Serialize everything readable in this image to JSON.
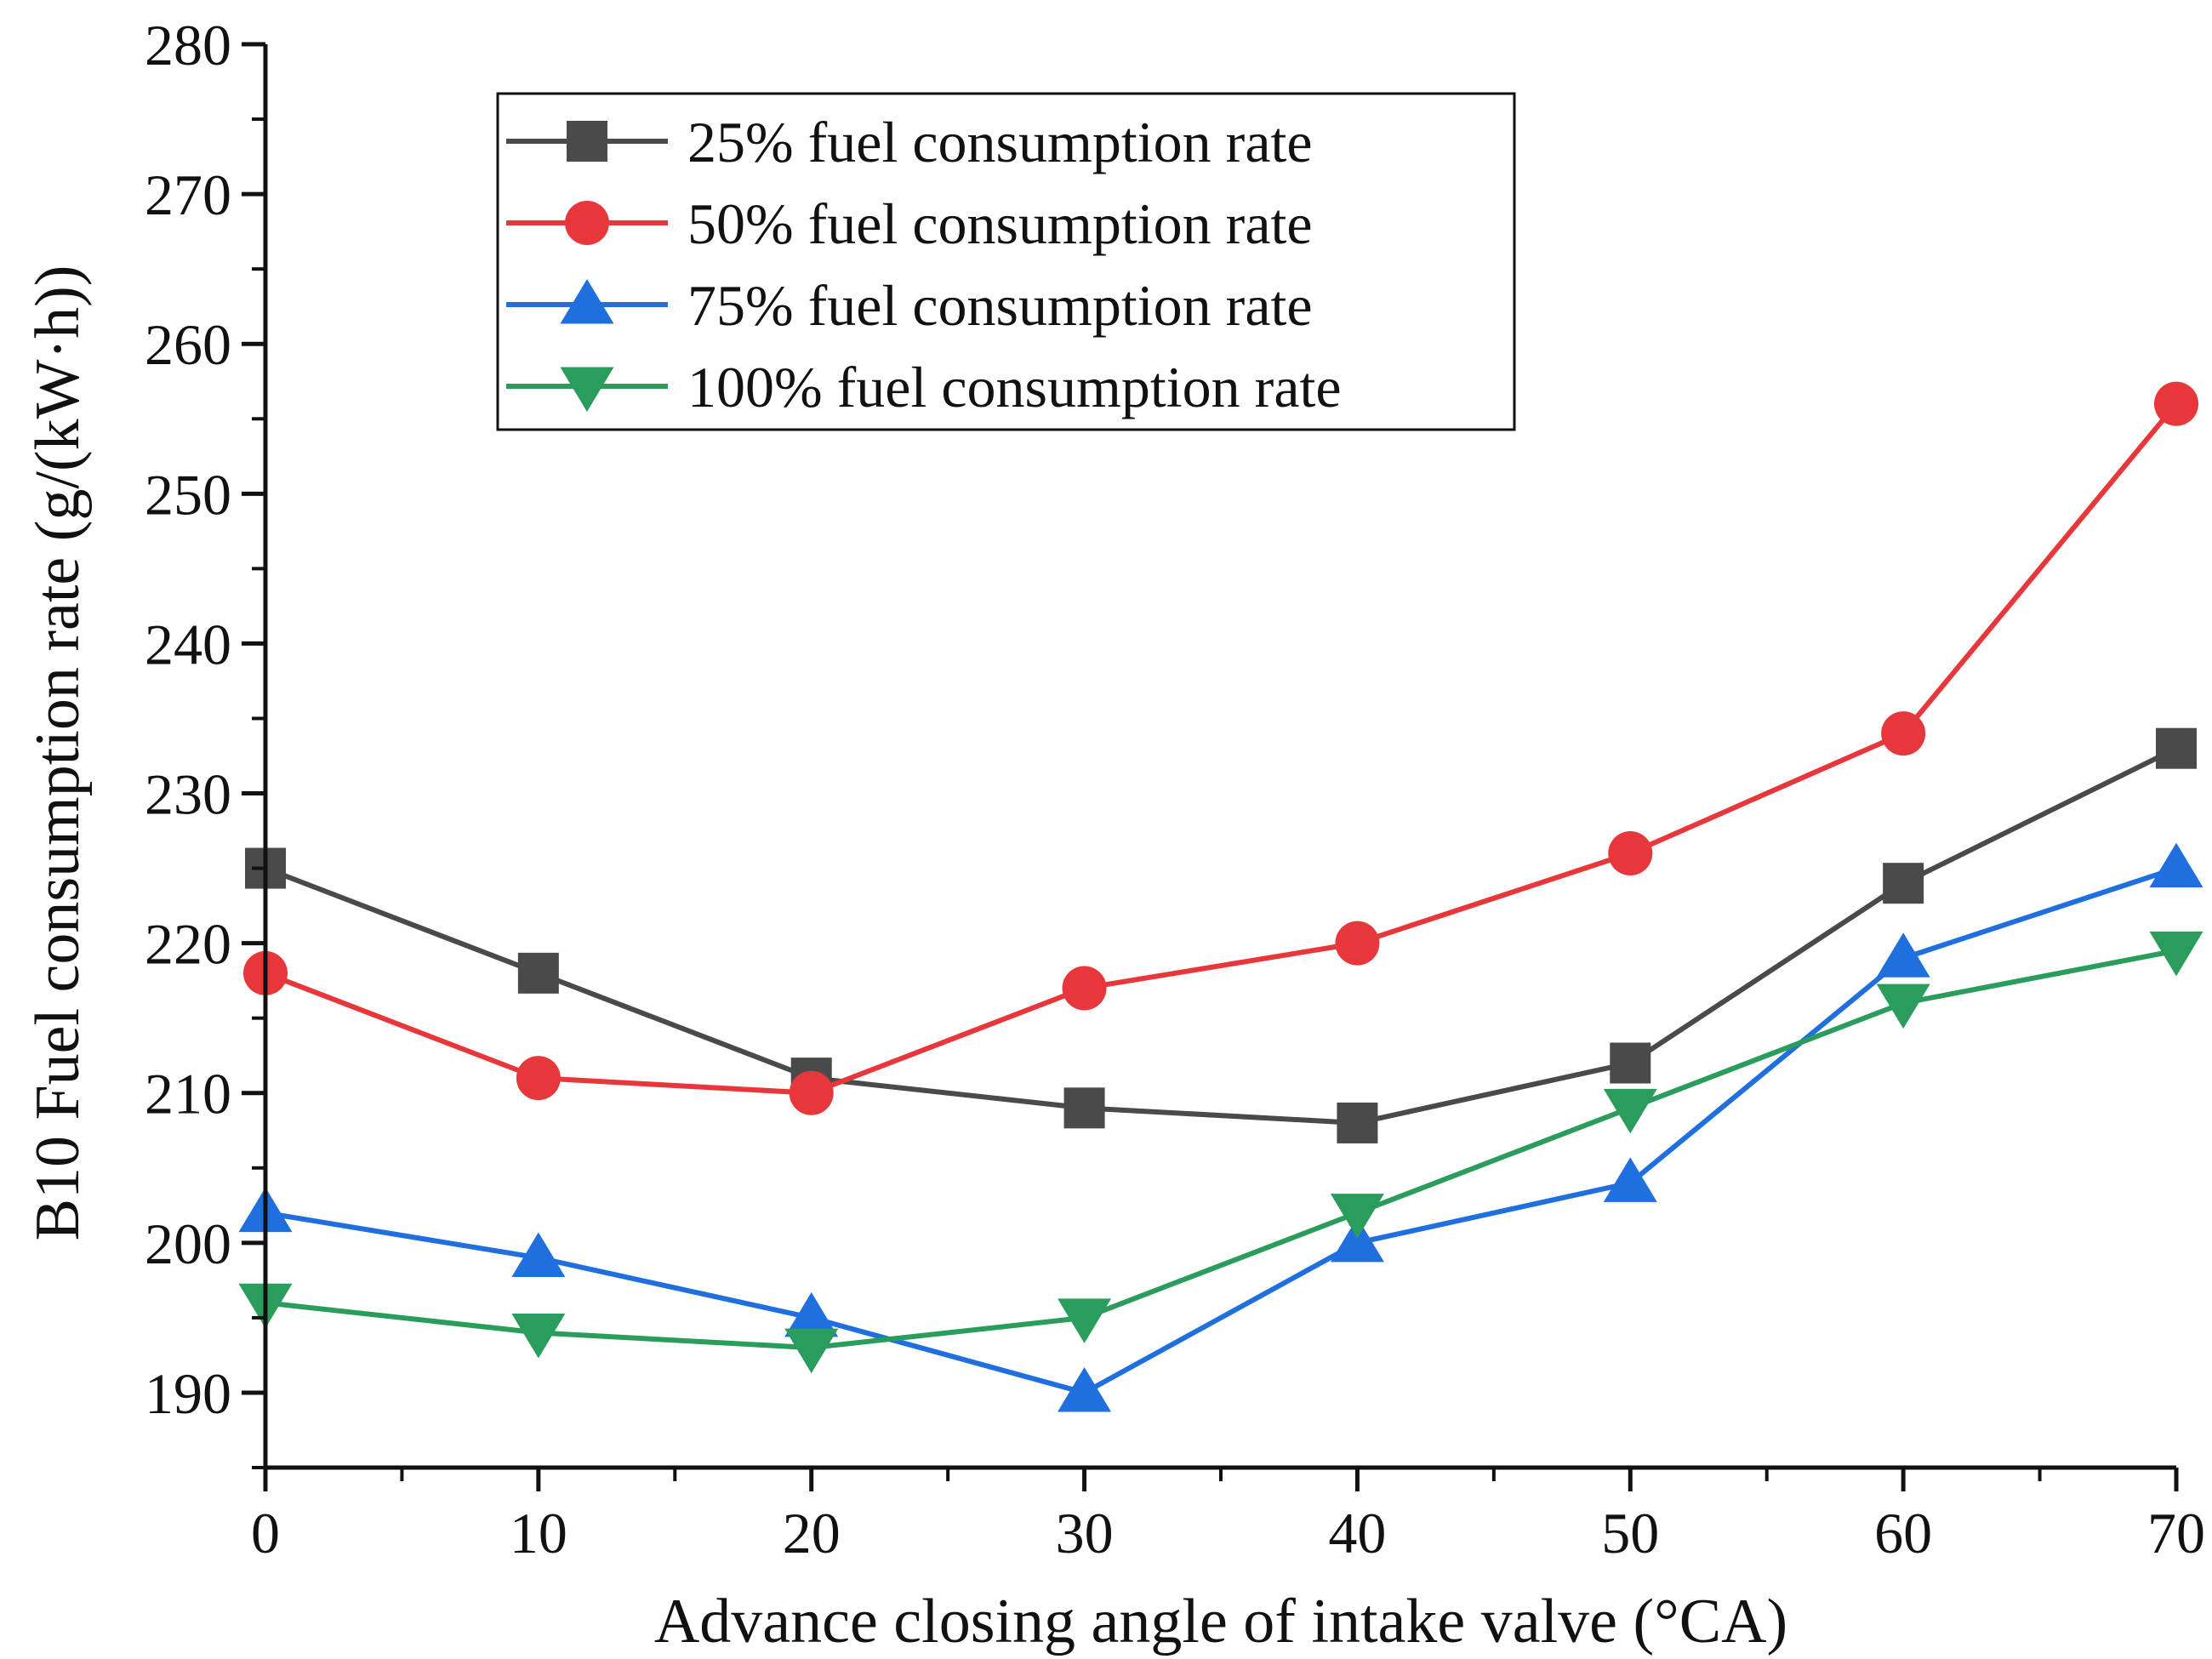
{
  "chart_data": {
    "type": "line",
    "x": [
      0,
      10,
      20,
      30,
      40,
      50,
      60,
      70
    ],
    "series": [
      {
        "name": "25% fuel consumption rate",
        "marker": "square",
        "color": "#4a4a4a",
        "values": [
          225,
          218,
          211,
          209,
          208,
          212,
          224,
          233
        ]
      },
      {
        "name": "50% fuel consumption rate",
        "marker": "circle",
        "color": "#e8373a",
        "values": [
          218,
          211,
          210,
          217,
          220,
          226,
          234,
          256
        ]
      },
      {
        "name": "75% fuel consumption rate",
        "marker": "triangle-up",
        "color": "#1f6fde",
        "values": [
          202,
          199,
          195,
          190,
          200,
          204,
          219,
          225
        ]
      },
      {
        "name": "100% fuel consumption rate",
        "marker": "triangle-down",
        "color": "#2a9d5c",
        "values": [
          196,
          194,
          193,
          195,
          202,
          209,
          216,
          219.5
        ]
      }
    ],
    "xlabel": "Advance closing angle of intake valve (°CA)",
    "ylabel": "B10 Fuel consumption rate (g/(kW·h))",
    "xlim": [
      0,
      70
    ],
    "ylim": [
      185,
      280
    ],
    "xticks": [
      0,
      10,
      20,
      30,
      40,
      50,
      60,
      70
    ],
    "yticks": [
      190,
      200,
      210,
      220,
      230,
      240,
      250,
      260,
      270,
      280
    ],
    "legend_position": "top-left",
    "grid": false
  }
}
